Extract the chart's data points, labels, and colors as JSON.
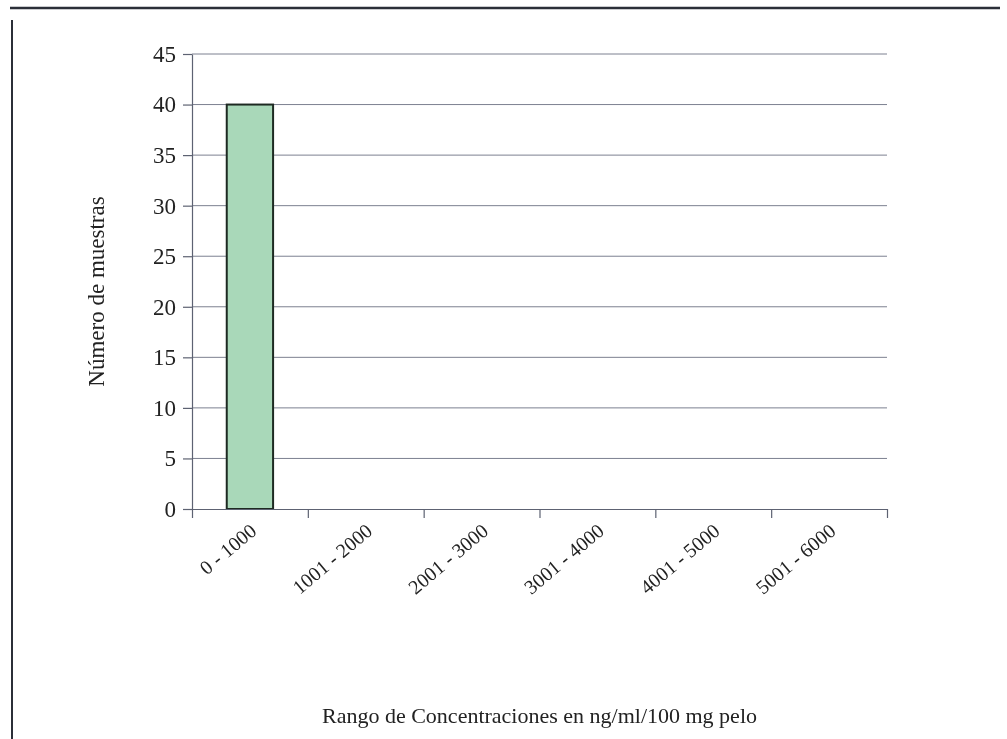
{
  "chart_data": {
    "type": "bar",
    "xlabel": "Rango de Concentraciones en ng/ml/100 mg pelo",
    "ylabel": "Número de muestras",
    "categories": [
      "0 - 1000",
      "1001 - 2000",
      "2001 - 3000",
      "3001 - 4000",
      "4001 - 5000",
      "5001 - 6000"
    ],
    "values": [
      40,
      0,
      0,
      0,
      0,
      0
    ],
    "color": "#a9d8b9",
    "ylim": [
      0,
      45
    ],
    "yticks": [
      0,
      5,
      10,
      15,
      20,
      25,
      30,
      35,
      40,
      45
    ],
    "grid": "y"
  }
}
